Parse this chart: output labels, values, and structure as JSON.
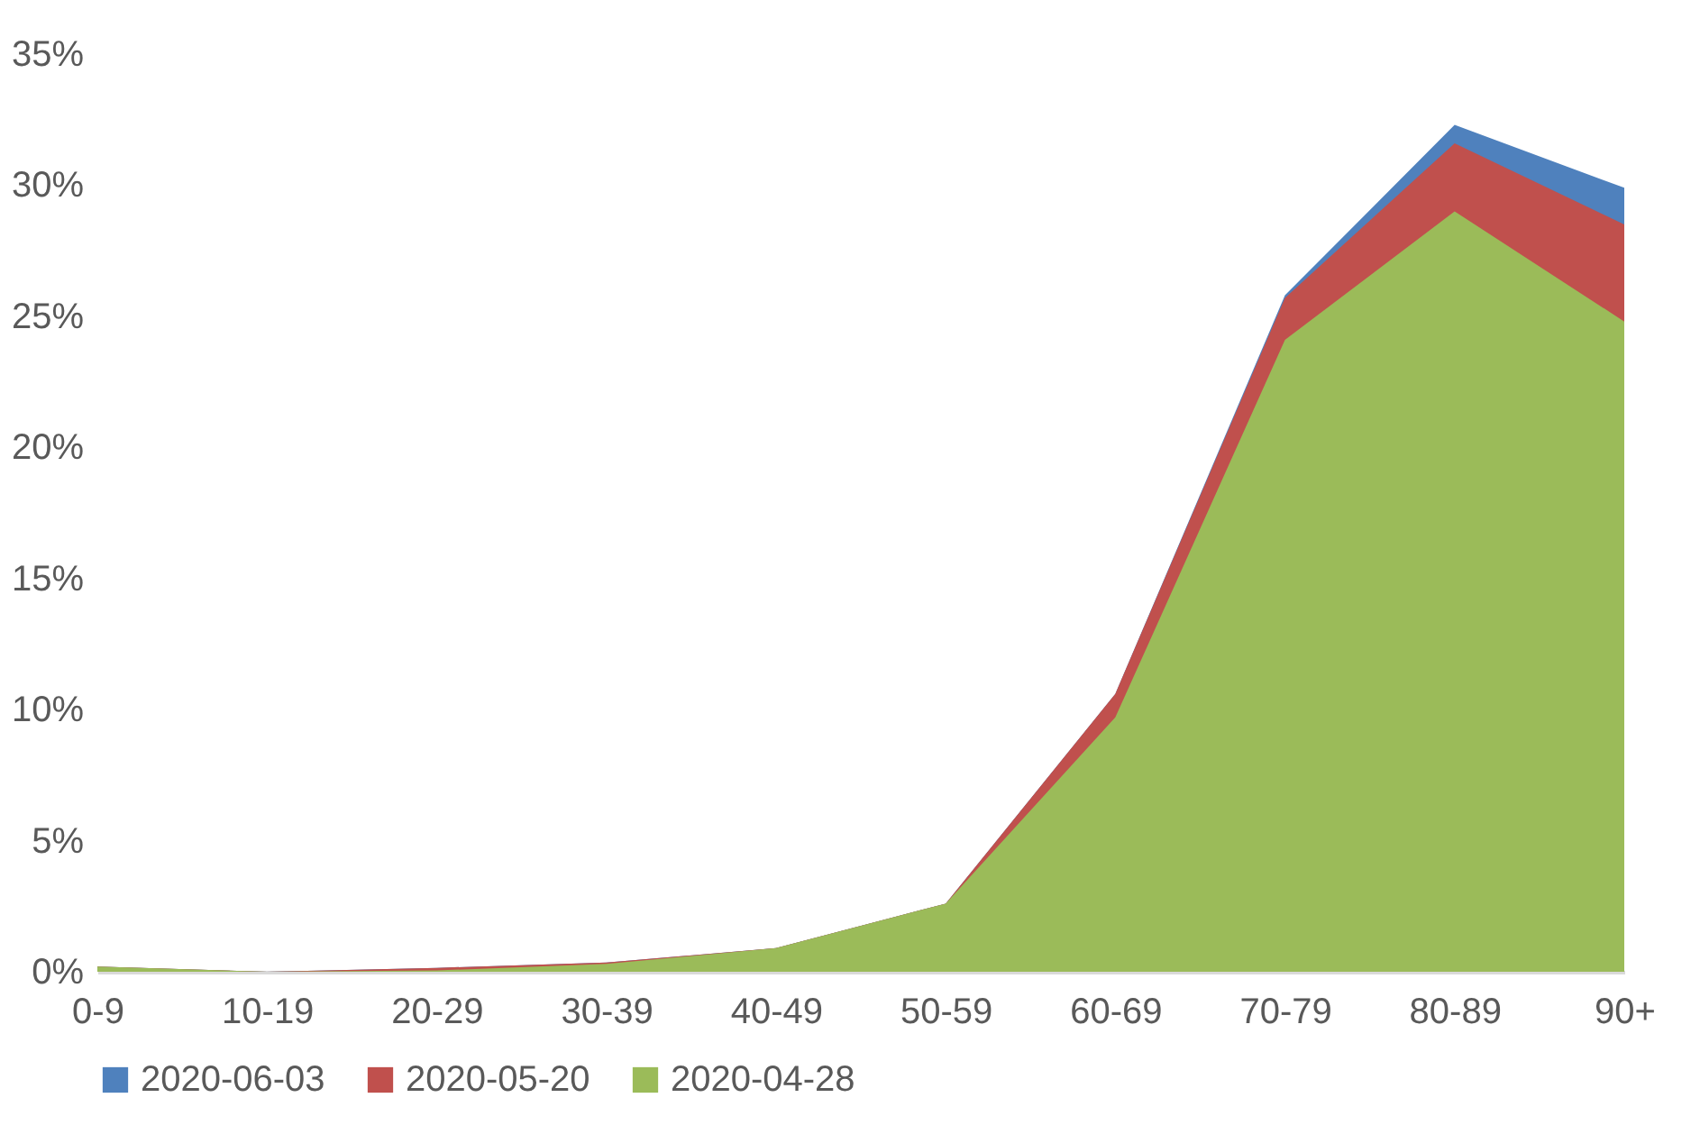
{
  "chart_data": {
    "type": "area",
    "categories": [
      "0-9",
      "10-19",
      "20-29",
      "30-39",
      "40-49",
      "50-59",
      "60-69",
      "70-79",
      "80-89",
      "90+"
    ],
    "series": [
      {
        "name": "2020-06-03",
        "color": "#4f81bd",
        "values": [
          0.2,
          0,
          0.15,
          0.35,
          0.9,
          2.6,
          10.6,
          25.8,
          32.3,
          29.9
        ]
      },
      {
        "name": "2020-05-20",
        "color": "#c0504d",
        "values": [
          0.2,
          0,
          0.15,
          0.35,
          0.9,
          2.6,
          10.6,
          25.7,
          31.6,
          28.5
        ]
      },
      {
        "name": "2020-04-28",
        "color": "#9bbb59",
        "values": [
          0.2,
          0,
          0.05,
          0.3,
          0.9,
          2.6,
          9.7,
          24.1,
          29.0,
          24.8
        ]
      }
    ],
    "ylim": [
      0,
      35
    ],
    "yticks": [
      {
        "value": 0,
        "label": "0%"
      },
      {
        "value": 5,
        "label": "5%"
      },
      {
        "value": 10,
        "label": "10%"
      },
      {
        "value": 15,
        "label": "15%"
      },
      {
        "value": 20,
        "label": "20%"
      },
      {
        "value": 25,
        "label": "25%"
      },
      {
        "value": 30,
        "label": "30%"
      },
      {
        "value": 35,
        "label": "35%"
      }
    ],
    "grid": false,
    "legend": "bottom"
  }
}
